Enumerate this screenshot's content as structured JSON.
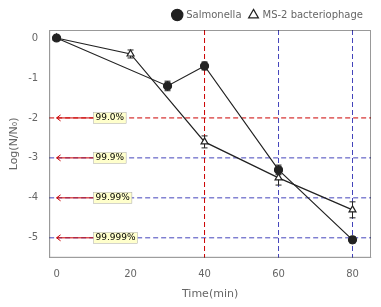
{
  "chart_data": {
    "type": "line",
    "x_label": "Time(min)",
    "y_label": "Log(N/N₀)",
    "xlim": [
      -2,
      85
    ],
    "ylim": [
      -5.5,
      0.2
    ],
    "xticks": [
      0,
      20,
      40,
      60,
      80
    ],
    "yticks": [
      0,
      -1,
      -2,
      -3,
      -4,
      -5
    ],
    "grid": false,
    "legend": "upper right",
    "series": [
      {
        "name": "Salmonella",
        "color": "#222222",
        "marker": "filled_circle",
        "x": [
          0,
          30,
          40,
          60,
          80
        ],
        "values": [
          0,
          -1.2,
          -0.7,
          -3.3,
          -5.05
        ],
        "errors": [
          0.0,
          0.12,
          0.1,
          0.12,
          0.08
        ]
      },
      {
        "name": "MS-2 bacteriophage",
        "color": "#222222",
        "marker": "open_triangle",
        "x": [
          0,
          20,
          40,
          60,
          80
        ],
        "values": [
          0,
          -0.4,
          -2.6,
          -3.5,
          -4.3
        ],
        "errors": [
          0.0,
          0.1,
          0.15,
          0.18,
          0.2
        ]
      }
    ],
    "hlines": [
      {
        "value": -2,
        "color": "#cc0000",
        "line_style": "dashed"
      },
      {
        "value": -3,
        "color": "#4444bb",
        "line_style": "dashed"
      },
      {
        "value": -4,
        "color": "#4444bb",
        "line_style": "dashed"
      },
      {
        "value": -5,
        "color": "#4444bb",
        "line_style": "dashed"
      }
    ],
    "vlines": [
      {
        "value": 40,
        "color": "#cc0000",
        "line_style": "dashed"
      },
      {
        "value": 60,
        "color": "#4444bb",
        "line_style": "dashed"
      },
      {
        "value": 80,
        "color": "#4444bb",
        "line_style": "dashed"
      }
    ],
    "annotations": [
      {
        "text": "99.0%",
        "x": 10,
        "y": -2,
        "arrow_x": 0,
        "color": "#cc0000",
        "background": "#ffffcc"
      },
      {
        "text": "99.9%",
        "x": 10,
        "y": -3,
        "arrow_x": 0,
        "color": "#cc0000",
        "background": "#ffffcc"
      },
      {
        "text": "99.99%",
        "x": 10,
        "y": -4,
        "arrow_x": 0,
        "color": "#cc0000",
        "background": "#ffffcc"
      },
      {
        "text": "99.999%",
        "x": 10,
        "y": -5,
        "arrow_x": 0,
        "color": "#cc0000",
        "background": "#ffffcc"
      }
    ]
  }
}
